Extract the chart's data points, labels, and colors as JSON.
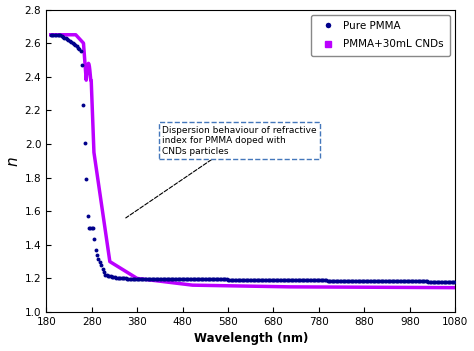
{
  "title": "",
  "xlabel": "Wavelength (nm)",
  "ylabel": "n",
  "xlim": [
    180,
    1080
  ],
  "ylim": [
    1.0,
    2.8
  ],
  "xticks": [
    180,
    280,
    380,
    480,
    580,
    680,
    780,
    880,
    980,
    1080
  ],
  "yticks": [
    1.0,
    1.2,
    1.4,
    1.6,
    1.8,
    2.0,
    2.2,
    2.4,
    2.6,
    2.8
  ],
  "pure_pmma_color": "#00008B",
  "pmma_cnds_color": "#BB00FF",
  "legend_labels": [
    "Pure PMMA",
    "PMMA+30mL CNDs"
  ],
  "annotation_text": "Dispersion behaviour of refractive\nindex for PMMA doped with\nCNDs particles",
  "background_color": "#ffffff"
}
